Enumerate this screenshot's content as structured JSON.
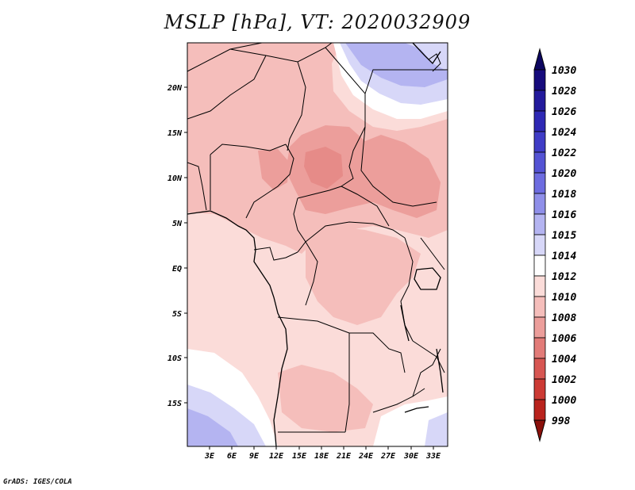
{
  "title": "MSLP [hPa], VT: 2020032909",
  "credit": "GrADS: IGES/COLA",
  "lat_labels": [
    "20N",
    "15N",
    "10N",
    "5N",
    "EQ",
    "5S",
    "10S",
    "15S"
  ],
  "lon_labels": [
    "3E",
    "6E",
    "9E",
    "12E",
    "15E",
    "18E",
    "21E",
    "24E",
    "27E",
    "30E",
    "33E"
  ],
  "colorbar": {
    "levels": [
      {
        "label": "1030",
        "color": "#160b7c"
      },
      {
        "label": "1028",
        "color": "#231a9c"
      },
      {
        "label": "1026",
        "color": "#2e28b4"
      },
      {
        "label": "1024",
        "color": "#3f3cc6"
      },
      {
        "label": "1022",
        "color": "#5453d4"
      },
      {
        "label": "1020",
        "color": "#6d6ce0"
      },
      {
        "label": "1018",
        "color": "#8f8fe9"
      },
      {
        "label": "1016",
        "color": "#b4b4f1"
      },
      {
        "label": "1015",
        "color": "#d7d7f8"
      },
      {
        "label": "1014",
        "color": "#ffffff"
      },
      {
        "label": "1012",
        "color": "#fbdcd9"
      },
      {
        "label": "1010",
        "color": "#f5bebb"
      },
      {
        "label": "1008",
        "color": "#ec9e9b"
      },
      {
        "label": "1006",
        "color": "#e27b78"
      },
      {
        "label": "1004",
        "color": "#d75652"
      },
      {
        "label": "1002",
        "color": "#cc3a34"
      },
      {
        "label": "1000",
        "color": "#b9231d"
      },
      {
        "label": "998",
        "color": "#9e1510"
      }
    ],
    "max_arrow_color": "#0d0660",
    "min_arrow_color": "#8a100b"
  }
}
